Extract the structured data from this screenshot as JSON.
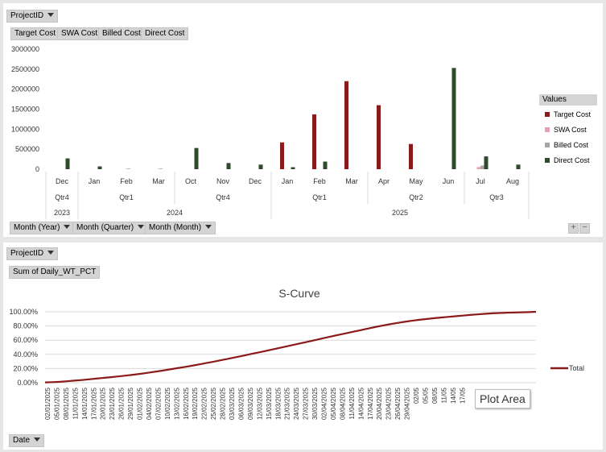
{
  "top": {
    "filter_button": "ProjectID",
    "value_buttons": [
      "Target Cost",
      "SWA Cost",
      "Billed Cost",
      "Direct Cost"
    ],
    "axis_buttons": [
      "Month (Year)",
      "Month (Quarter)",
      "Month (Month)"
    ],
    "zoom_in": "+",
    "zoom_out": "−",
    "legend_title": "Values"
  },
  "bottom": {
    "filter_button": "ProjectID",
    "value_button": "Sum of Daily_WT_PCT",
    "axis_button": "Date",
    "tooltip": "Plot Area"
  },
  "colors": {
    "target": "#8b1a1a",
    "swa": "#e8a0b0",
    "billed": "#a6a6a6",
    "direct": "#2f4a2c",
    "scurve": "#8b1a1a"
  },
  "chart_data": [
    {
      "type": "bar",
      "ylim": [
        0,
        3000000
      ],
      "yticks": [
        "0",
        "500000",
        "1000000",
        "1500000",
        "2000000",
        "2500000",
        "3000000"
      ],
      "categories": [
        "Dec",
        "Jan",
        "Feb",
        "Mar",
        "Oct",
        "Nov",
        "Dec",
        "Jan",
        "Feb",
        "Mar",
        "Apr",
        "May",
        "Jun",
        "Jul",
        "Aug"
      ],
      "quarters": [
        {
          "label": "Qtr4",
          "span": 1
        },
        {
          "label": "Qtr1",
          "span": 3
        },
        {
          "label": "Qtr4",
          "span": 3
        },
        {
          "label": "Qtr1",
          "span": 3
        },
        {
          "label": "Qtr2",
          "span": 3
        },
        {
          "label": "Qtr3",
          "span": 2
        }
      ],
      "years": [
        {
          "label": "2023",
          "span": 1
        },
        {
          "label": "2024",
          "span": 6
        },
        {
          "label": "2025",
          "span": 8
        }
      ],
      "series": [
        {
          "name": "Target Cost",
          "values": [
            0,
            0,
            0,
            0,
            0,
            0,
            0,
            670000,
            1370000,
            2200000,
            1600000,
            630000,
            0,
            0,
            0
          ]
        },
        {
          "name": "SWA Cost",
          "values": [
            0,
            0,
            0,
            0,
            0,
            0,
            0,
            0,
            0,
            0,
            0,
            0,
            0,
            55000,
            0
          ]
        },
        {
          "name": "Billed Cost",
          "values": [
            0,
            0,
            15000,
            15000,
            0,
            0,
            0,
            0,
            0,
            0,
            0,
            0,
            0,
            90000,
            0
          ]
        },
        {
          "name": "Direct Cost",
          "values": [
            270000,
            70000,
            0,
            0,
            530000,
            155000,
            115000,
            50000,
            190000,
            0,
            0,
            0,
            2530000,
            320000,
            115000
          ]
        }
      ],
      "legend_position": "right"
    },
    {
      "type": "line",
      "title": "S-Curve",
      "ylim": [
        0,
        100
      ],
      "yticks": [
        "0.00%",
        "20.00%",
        "40.00%",
        "60.00%",
        "80.00%",
        "100.00%"
      ],
      "x_labels": [
        "02/01/2025",
        "05/01/2025",
        "08/01/2025",
        "11/01/2025",
        "14/01/2025",
        "17/01/2025",
        "20/01/2025",
        "23/01/2025",
        "26/01/2025",
        "29/01/2025",
        "01/02/2025",
        "04/02/2025",
        "07/02/2025",
        "10/02/2025",
        "13/02/2025",
        "16/02/2025",
        "19/02/2025",
        "22/02/2025",
        "25/02/2025",
        "28/02/2025",
        "03/03/2025",
        "06/03/2025",
        "09/03/2025",
        "12/03/2025",
        "15/03/2025",
        "18/03/2025",
        "21/03/2025",
        "24/03/2025",
        "27/03/2025",
        "30/03/2025",
        "02/04/2025",
        "05/04/2025",
        "08/04/2025",
        "11/04/2025",
        "14/04/2025",
        "17/04/2025",
        "20/04/2025",
        "23/04/2025",
        "26/04/2025",
        "29/04/2025",
        "02/05",
        "05/05",
        "08/05",
        "11/05",
        "14/05",
        "17/05"
      ],
      "series": [
        {
          "name": "Total",
          "values": [
            0.4,
            0.8,
            1.3,
            2.0,
            2.9,
            3.8,
            4.8,
            5.8,
            6.8,
            7.8,
            8.9,
            10.0,
            11.2,
            12.5,
            14.0,
            15.5,
            17.1,
            18.7,
            20.4,
            22.1,
            23.9,
            25.8,
            27.7,
            29.7,
            31.7,
            33.8,
            35.9,
            38.0,
            40.2,
            42.4,
            44.6,
            46.8,
            49.1,
            51.4,
            53.6,
            55.9,
            58.2,
            60.5,
            62.8,
            65.1,
            67.4,
            69.6,
            71.8,
            74.0,
            76.2,
            78.4,
            80.5,
            82.4,
            84.2,
            85.8,
            87.3,
            88.6,
            89.8,
            90.9,
            91.9,
            92.8,
            93.8,
            94.7,
            95.6,
            96.4,
            97.2,
            97.8,
            98.3,
            98.7,
            99.0,
            99.3,
            99.6,
            100.0
          ]
        }
      ],
      "grid": true,
      "legend_position": "right"
    }
  ]
}
